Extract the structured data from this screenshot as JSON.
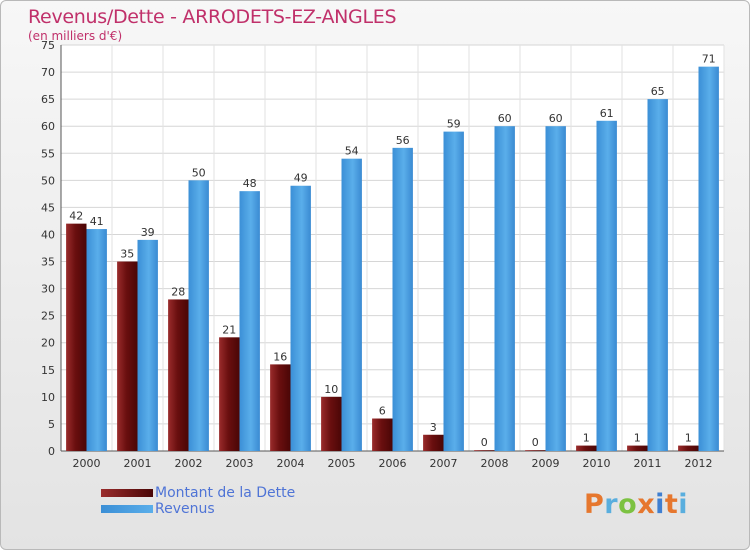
{
  "header": {
    "title": "Revenus/Dette - ARRODETS-EZ-ANGLES",
    "subtitle": "(en milliers d'€)"
  },
  "logo": {
    "text": "Proxiti",
    "colors": [
      "#e6772e",
      "#59aede",
      "#7cc242",
      "#e6772e",
      "#3f7fd1",
      "#e6772e",
      "#59aede"
    ]
  },
  "colors": {
    "debt": "#7a1616",
    "revenue": "#4ea6e6",
    "title": "#c0306a",
    "legend_text": "#4f74d6"
  },
  "chart_data": {
    "type": "bar",
    "title": "Revenus/Dette - ARRODETS-EZ-ANGLES",
    "subtitle": "(en milliers d'€)",
    "categories": [
      "2000",
      "2001",
      "2002",
      "2003",
      "2004",
      "2005",
      "2006",
      "2007",
      "2008",
      "2009",
      "2010",
      "2011",
      "2012"
    ],
    "series": [
      {
        "name": "Montant de la Dette",
        "values": [
          42,
          35,
          28,
          21,
          16,
          10,
          6,
          3,
          0,
          0,
          1,
          1,
          1
        ]
      },
      {
        "name": "Revenus",
        "values": [
          41,
          39,
          50,
          48,
          49,
          54,
          56,
          59,
          60,
          60,
          61,
          65,
          71
        ]
      }
    ],
    "ylim": [
      0,
      75
    ],
    "yticks": [
      0,
      5,
      10,
      15,
      20,
      25,
      30,
      35,
      40,
      45,
      50,
      55,
      60,
      65,
      70,
      75
    ],
    "grid": true,
    "legend": "bottom-left"
  }
}
